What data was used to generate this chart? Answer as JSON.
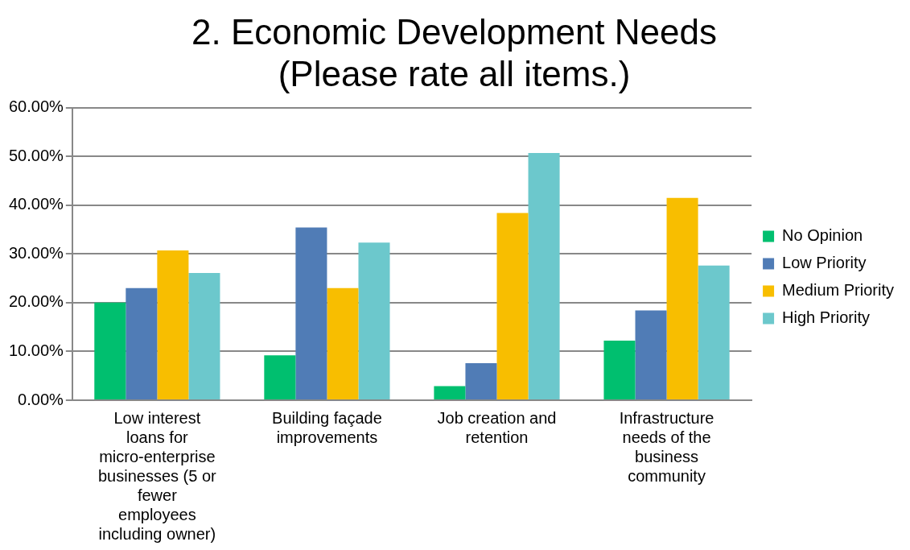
{
  "chart_data": {
    "type": "bar",
    "title": "2. Economic Development Needs (Please rate all items.)",
    "categories": [
      "Low interest loans for micro-enterprise businesses (5 or fewer employees including owner)",
      "Building façade improvements",
      "Job creation and retention",
      "Infrastructure needs of the business community"
    ],
    "series": [
      {
        "name": "No Opinion",
        "color": "#00bf6f",
        "values": [
          20.0,
          9.2,
          2.9,
          12.2
        ]
      },
      {
        "name": "Low Priority",
        "color": "#507cb6",
        "values": [
          23.0,
          35.4,
          7.6,
          18.4
        ]
      },
      {
        "name": "Medium Priority",
        "color": "#f8be00",
        "values": [
          30.7,
          23.0,
          38.4,
          41.5
        ]
      },
      {
        "name": "High Priority",
        "color": "#6cc8cc",
        "values": [
          26.1,
          32.3,
          50.7,
          27.6
        ]
      }
    ],
    "ylim": [
      0,
      60
    ],
    "yticks": [
      {
        "value": 0,
        "label": "0.00%"
      },
      {
        "value": 10,
        "label": "10.00%"
      },
      {
        "value": 20,
        "label": "20.00%"
      },
      {
        "value": 30,
        "label": "30.00%"
      },
      {
        "value": 40,
        "label": "40.00%"
      },
      {
        "value": 50,
        "label": "50.00%"
      },
      {
        "value": 60,
        "label": "60.00%"
      }
    ],
    "grid": "y",
    "legend": "right"
  }
}
